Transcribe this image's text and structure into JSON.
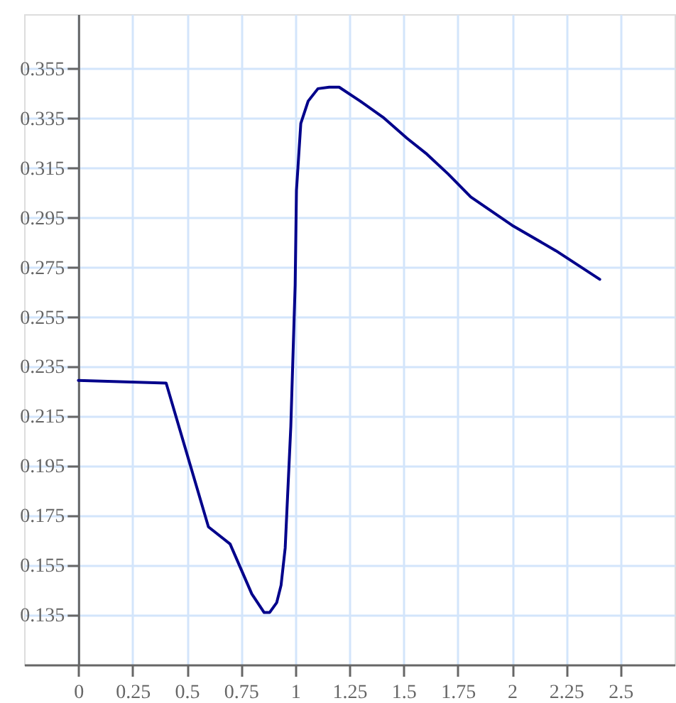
{
  "chart_data": {
    "type": "line",
    "xlim": [
      -0.25,
      2.75
    ],
    "ylim": [
      0.115,
      0.377
    ],
    "xticks": [
      0,
      0.25,
      0.5,
      0.75,
      1,
      1.25,
      1.5,
      1.75,
      2,
      2.25,
      2.5
    ],
    "yticks": [
      0.135,
      0.155,
      0.175,
      0.195,
      0.215,
      0.235,
      0.255,
      0.275,
      0.295,
      0.315,
      0.335,
      0.355
    ],
    "grid": true,
    "line_style": "solid",
    "marker": "none",
    "series": [
      {
        "color": "#00008b",
        "x": [
          0,
          0.405,
          0.6,
          0.7,
          0.8,
          0.857,
          0.882,
          0.915,
          0.935,
          0.954,
          0.98,
          1.0,
          1.006,
          1.026,
          1.06,
          1.105,
          1.157,
          1.203,
          1.3,
          1.405,
          1.516,
          1.608,
          1.706,
          1.81,
          2.0,
          2.203,
          2.405
        ],
        "values": [
          0.2295,
          0.2284,
          0.1705,
          0.1636,
          0.1435,
          0.136,
          0.136,
          0.14,
          0.147,
          0.162,
          0.211,
          0.268,
          0.306,
          0.333,
          0.342,
          0.347,
          0.3476,
          0.3476,
          0.342,
          0.3355,
          0.327,
          0.3206,
          0.3126,
          0.3034,
          0.292,
          0.2817,
          0.2702
        ]
      }
    ]
  }
}
